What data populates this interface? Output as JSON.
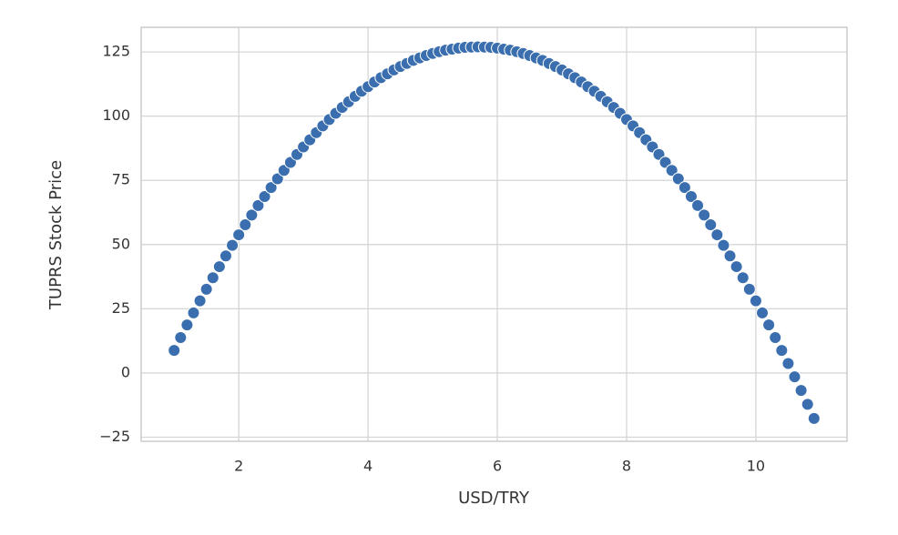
{
  "chart_data": {
    "type": "scatter",
    "xlabel": "USD/TRY",
    "ylabel": "TUPRS Stock Price",
    "series": [
      {
        "color": "#3a6eae",
        "x": [
          1.0,
          1.1,
          1.2,
          1.3,
          1.4,
          1.5,
          1.6,
          1.7,
          1.8,
          1.9,
          2.0,
          2.1,
          2.2,
          2.3,
          2.4,
          2.5,
          2.6,
          2.7,
          2.8,
          2.9,
          3.0,
          3.1,
          3.2,
          3.3,
          3.4,
          3.5,
          3.6,
          3.7,
          3.8,
          3.9,
          4.0,
          4.1,
          4.2,
          4.3,
          4.4,
          4.5,
          4.6,
          4.7,
          4.8,
          4.9,
          5.0,
          5.1,
          5.2,
          5.3,
          5.4,
          5.5,
          5.6,
          5.7,
          5.8,
          5.9,
          6.0,
          6.1,
          6.2,
          6.3,
          6.4,
          6.5,
          6.6,
          6.7,
          6.8,
          6.9,
          7.0,
          7.1,
          7.2,
          7.3,
          7.4,
          7.5,
          7.6,
          7.7,
          7.8,
          7.9,
          8.0,
          8.1,
          8.2,
          8.3,
          8.4,
          8.5,
          8.6,
          8.7,
          8.8,
          8.9,
          9.0,
          9.1,
          9.2,
          9.3,
          9.4,
          9.5,
          9.6,
          9.7,
          9.8,
          9.9,
          10.0,
          10.1,
          10.2,
          10.3,
          10.4,
          10.5,
          10.6,
          10.7,
          10.8,
          10.9
        ],
        "values": [
          8.8,
          13.8,
          18.7,
          23.4,
          28.1,
          32.6,
          37.1,
          41.4,
          45.6,
          49.7,
          53.8,
          57.7,
          61.5,
          65.2,
          68.7,
          72.2,
          75.6,
          78.9,
          82.0,
          85.1,
          88.0,
          90.8,
          93.6,
          96.2,
          98.7,
          101.1,
          103.4,
          105.6,
          107.7,
          109.7,
          111.5,
          113.3,
          115.0,
          116.5,
          118.0,
          119.3,
          120.5,
          121.7,
          122.7,
          123.6,
          124.4,
          125.1,
          125.7,
          126.1,
          126.5,
          126.8,
          126.9,
          127.0,
          126.9,
          126.8,
          126.5,
          126.1,
          125.7,
          125.1,
          124.4,
          123.6,
          122.7,
          121.7,
          120.5,
          119.3,
          118.0,
          116.5,
          115.0,
          113.3,
          111.5,
          109.7,
          107.7,
          105.6,
          103.4,
          101.1,
          98.7,
          96.2,
          93.6,
          90.8,
          88.0,
          85.1,
          82.0,
          78.9,
          75.6,
          72.2,
          68.7,
          65.2,
          61.5,
          57.7,
          53.8,
          49.7,
          45.6,
          41.4,
          37.1,
          32.6,
          28.1,
          23.4,
          18.7,
          13.8,
          8.8,
          3.7,
          -1.5,
          -6.8,
          -12.2,
          -17.7
        ]
      }
    ],
    "xlim": [
      0.49,
      11.41
    ],
    "xticks": [
      2,
      4,
      6,
      8,
      10
    ],
    "ylim": [
      -26.6,
      134.6
    ],
    "yticks": [
      {
        "value": -25,
        "label": "−25"
      },
      0,
      25,
      50,
      75,
      100,
      125
    ],
    "grid": true
  }
}
